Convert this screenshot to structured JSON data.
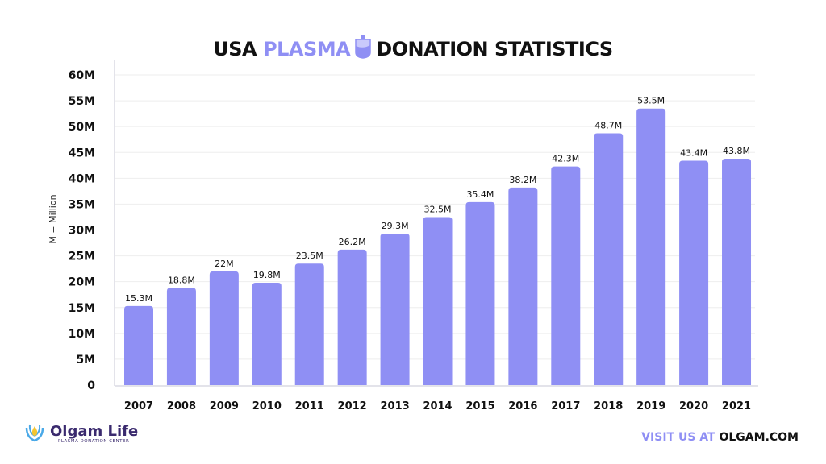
{
  "title": {
    "part1": "USA",
    "part2": "PLASMA",
    "part3": "DONATION STATISTICS"
  },
  "logo": {
    "name": "Olgam Life",
    "subtitle": "PLASMA DONATION CENTER"
  },
  "footer": {
    "part1": "VISIT US AT",
    "part2": "OLGAM.COM"
  },
  "colors": {
    "bar": "#8f8ff4",
    "accent": "#8f8ff4",
    "grid": "#eeeeee",
    "axis": "#e3e3ea"
  },
  "chart_data": {
    "type": "bar",
    "title": "USA PLASMA DONATION STATISTICS",
    "xlabel": "",
    "ylabel": "M = Million",
    "ylim": [
      0,
      60
    ],
    "yticks": [
      0,
      5,
      10,
      15,
      20,
      25,
      30,
      35,
      40,
      45,
      50,
      55,
      60
    ],
    "ytick_labels": [
      "0",
      "5M",
      "10M",
      "15M",
      "20M",
      "25M",
      "30M",
      "35M",
      "40M",
      "45M",
      "50M",
      "55M",
      "60M"
    ],
    "categories": [
      "2007",
      "2008",
      "2009",
      "2010",
      "2011",
      "2012",
      "2013",
      "2014",
      "2015",
      "2016",
      "2017",
      "2018",
      "2019",
      "2020",
      "2021"
    ],
    "values": [
      15.3,
      18.8,
      22,
      19.8,
      23.5,
      26.2,
      29.3,
      32.5,
      35.4,
      38.2,
      42.3,
      48.7,
      53.5,
      43.4,
      43.8
    ],
    "data_labels": [
      "15.3M",
      "18.8M",
      "22M",
      "19.8M",
      "23.5M",
      "26.2M",
      "29.3M",
      "32.5M",
      "35.4M",
      "38.2M",
      "42.3M",
      "48.7M",
      "53.5M",
      "43.4M",
      "43.8M"
    ],
    "grid": true,
    "legend": "none"
  }
}
